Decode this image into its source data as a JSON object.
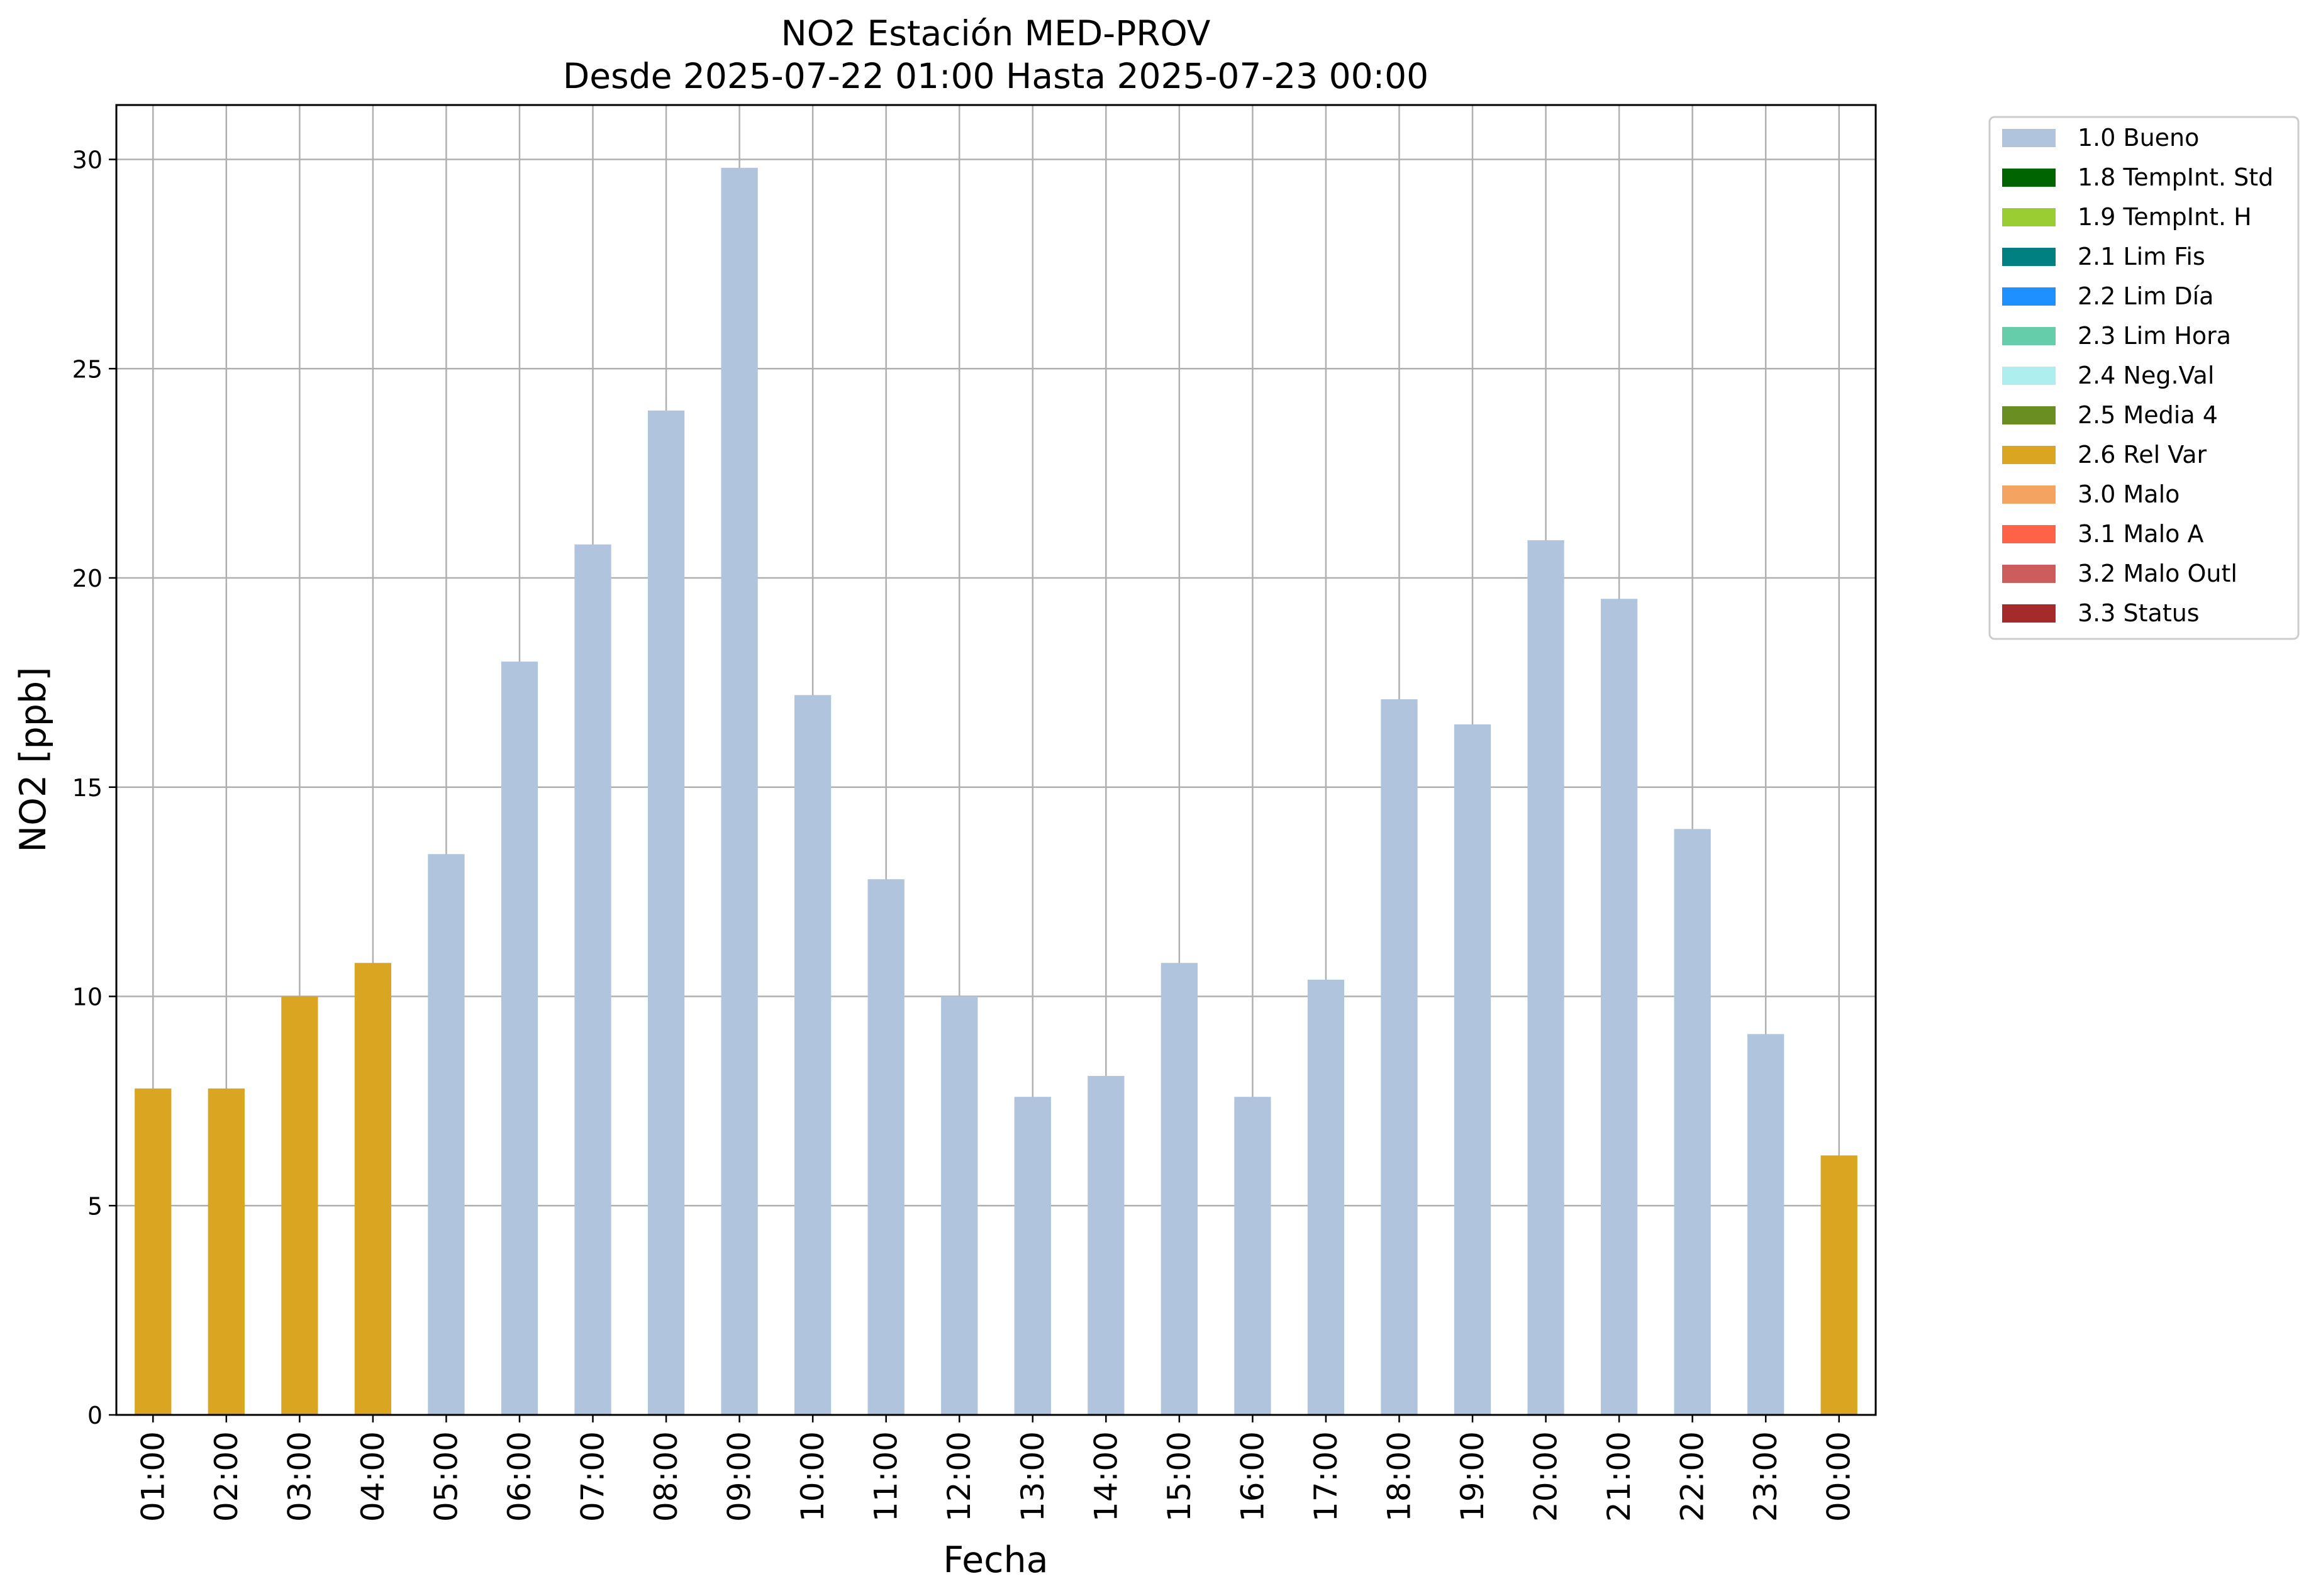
{
  "chart_data": {
    "type": "bar",
    "title": "NO2 Estación MED-PROV",
    "subtitle": "Desde 2025-07-22 01:00 Hasta 2025-07-23 00:00",
    "xlabel": "Fecha",
    "ylabel": "NO2 [ppb]",
    "ylim": [
      0,
      31.3
    ],
    "yticks": [
      0,
      5,
      10,
      15,
      20,
      25,
      30
    ],
    "grid": true,
    "legend_position": "outside-top-right",
    "categories": [
      "01:00",
      "02:00",
      "03:00",
      "04:00",
      "05:00",
      "06:00",
      "07:00",
      "08:00",
      "09:00",
      "10:00",
      "11:00",
      "12:00",
      "13:00",
      "14:00",
      "15:00",
      "16:00",
      "17:00",
      "18:00",
      "19:00",
      "20:00",
      "21:00",
      "22:00",
      "23:00",
      "00:00"
    ],
    "values": [
      7.8,
      7.8,
      10.0,
      10.8,
      13.4,
      18.0,
      20.8,
      24.0,
      29.8,
      17.2,
      12.8,
      10.0,
      7.6,
      8.1,
      10.8,
      7.6,
      10.4,
      17.1,
      16.5,
      20.9,
      19.5,
      14.0,
      9.1,
      6.2
    ],
    "flags": [
      "2.6 Rel Var",
      "2.6 Rel Var",
      "2.6 Rel Var",
      "2.6 Rel Var",
      "1.0 Bueno",
      "1.0 Bueno",
      "1.0 Bueno",
      "1.0 Bueno",
      "1.0 Bueno",
      "1.0 Bueno",
      "1.0 Bueno",
      "1.0 Bueno",
      "1.0 Bueno",
      "1.0 Bueno",
      "1.0 Bueno",
      "1.0 Bueno",
      "1.0 Bueno",
      "1.0 Bueno",
      "1.0 Bueno",
      "1.0 Bueno",
      "1.0 Bueno",
      "1.0 Bueno",
      "1.0 Bueno",
      "2.6 Rel Var"
    ],
    "legend": [
      {
        "label": "1.0 Bueno",
        "color": "#b0c4de"
      },
      {
        "label": "1.8 TempInt. Std",
        "color": "#006400"
      },
      {
        "label": "1.9 TempInt. H",
        "color": "#9acd32"
      },
      {
        "label": "2.1 Lim Fis",
        "color": "#008080"
      },
      {
        "label": "2.2 Lim Día",
        "color": "#1e90ff"
      },
      {
        "label": "2.3 Lim Hora",
        "color": "#66cdaa"
      },
      {
        "label": "2.4 Neg.Val",
        "color": "#afeeee"
      },
      {
        "label": "2.5 Media 4",
        "color": "#6b8e23"
      },
      {
        "label": "2.6 Rel Var",
        "color": "#daa520"
      },
      {
        "label": "3.0 Malo",
        "color": "#f4a460"
      },
      {
        "label": "3.1 Malo A",
        "color": "#ff6347"
      },
      {
        "label": "3.2 Malo Outl",
        "color": "#cd5c5c"
      },
      {
        "label": "3.3 Status",
        "color": "#a52a2a"
      }
    ]
  }
}
